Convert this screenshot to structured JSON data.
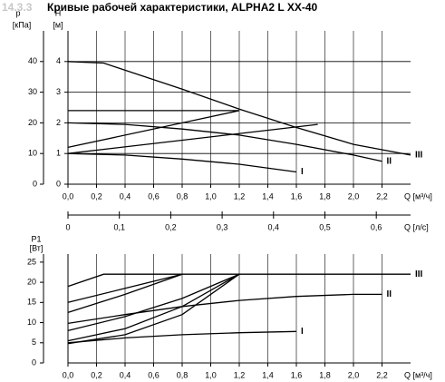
{
  "chart_data": [
    {
      "type": "line",
      "section": "14.3.3",
      "title": "Кривые рабочей характеристики, ALPHA2 L XX-40",
      "y_label": "H",
      "y_unit": "[м]",
      "y2_label": "p",
      "y2_unit": "[кПа]",
      "x_label": "Q [м³/ч]",
      "x2_label": "Q [л/с]",
      "xlim": [
        0,
        2.4
      ],
      "xticks": [
        {
          "value": 0,
          "label": "0,0"
        },
        {
          "value": 0.2,
          "label": "0,2"
        },
        {
          "value": 0.4,
          "label": "0,4"
        },
        {
          "value": 0.6,
          "label": "0,6"
        },
        {
          "value": 0.8,
          "label": "0,8"
        },
        {
          "value": 1.0,
          "label": "1,0"
        },
        {
          "value": 1.2,
          "label": "1,2"
        },
        {
          "value": 1.4,
          "label": "1,4"
        },
        {
          "value": 1.6,
          "label": "1,6"
        },
        {
          "value": 1.8,
          "label": "1,8"
        },
        {
          "value": 2.0,
          "label": "2,0"
        },
        {
          "value": 2.2,
          "label": "2,2"
        }
      ],
      "x2lim": [
        0,
        0.6667
      ],
      "x2ticks": [
        0,
        {
          "value": 0.1,
          "label": "0,1"
        },
        {
          "value": 0.2,
          "label": "0,2"
        },
        {
          "value": 0.3,
          "label": "0,3"
        },
        {
          "value": 0.4,
          "label": "0,4"
        },
        {
          "value": 0.5,
          "label": "0,5"
        },
        {
          "value": 0.6,
          "label": "0,6"
        }
      ],
      "ylim": [
        0,
        5
      ],
      "yticks": [
        0,
        1,
        2,
        3,
        4
      ],
      "y2lim": [
        0,
        50
      ],
      "y2ticks": [
        0,
        10,
        20,
        30,
        40
      ],
      "grid": [
        "x",
        "y"
      ],
      "series": [
        {
          "name": "I",
          "color": "#000000",
          "x": [
            0,
            0.4,
            0.8,
            1.2,
            1.6
          ],
          "values": [
            1.0,
            0.95,
            0.82,
            0.65,
            0.4
          ]
        },
        {
          "name": "II",
          "color": "#000000",
          "x": [
            0,
            0.4,
            0.8,
            1.2,
            1.6,
            2.0,
            2.2
          ],
          "values": [
            2.0,
            1.95,
            1.8,
            1.6,
            1.3,
            0.95,
            0.75
          ]
        },
        {
          "name": "III",
          "color": "#000000",
          "x": [
            0,
            0.25,
            0.8,
            1.2,
            1.6,
            2.0,
            2.4
          ],
          "values": [
            4.0,
            3.95,
            3.1,
            2.45,
            1.85,
            1.3,
            0.95
          ]
        },
        {
          "color": "#000000",
          "x": [
            0,
            1.2
          ],
          "values": [
            2.4,
            2.4
          ]
        },
        {
          "color": "#000000",
          "x": [
            0,
            1.2
          ],
          "values": [
            1.2,
            2.4
          ]
        },
        {
          "color": "#000000",
          "x": [
            0,
            1.75
          ],
          "values": [
            1.0,
            1.95
          ]
        }
      ]
    },
    {
      "type": "line",
      "y_label": "P1",
      "y_unit": "[Вт]",
      "x_label": "Q [м³/ч]",
      "xlim": [
        0,
        2.4
      ],
      "xticks": [
        {
          "value": 0,
          "label": "0,0"
        },
        {
          "value": 0.2,
          "label": "0,2"
        },
        {
          "value": 0.4,
          "label": "0,4"
        },
        {
          "value": 0.6,
          "label": "0,6"
        },
        {
          "value": 0.8,
          "label": "0,8"
        },
        {
          "value": 1.0,
          "label": "1,0"
        },
        {
          "value": 1.2,
          "label": "1,2"
        },
        {
          "value": 1.4,
          "label": "1,4"
        },
        {
          "value": 1.6,
          "label": "1,6"
        },
        {
          "value": 1.8,
          "label": "1,8"
        },
        {
          "value": 2.0,
          "label": "2,0"
        },
        {
          "value": 2.2,
          "label": "2,2"
        }
      ],
      "ylim": [
        0,
        27
      ],
      "yticks": [
        0,
        5,
        10,
        15,
        20,
        25
      ],
      "grid": [
        "x"
      ],
      "series": [
        {
          "name": "I",
          "color": "#000000",
          "x": [
            0,
            0.4,
            0.8,
            1.2,
            1.6
          ],
          "values": [
            5.0,
            6.2,
            7.0,
            7.5,
            7.8
          ]
        },
        {
          "name": "II",
          "color": "#000000",
          "x": [
            0,
            0.4,
            0.8,
            1.2,
            1.6,
            2.0,
            2.2
          ],
          "values": [
            9.8,
            12.0,
            14.0,
            15.5,
            16.5,
            17.0,
            17.0
          ]
        },
        {
          "name": "III",
          "color": "#000000",
          "x": [
            0,
            0.25,
            2.4
          ],
          "values": [
            19.0,
            22.0,
            22.0
          ]
        },
        {
          "color": "#000000",
          "x": [
            0,
            0.4,
            0.8
          ],
          "values": [
            15.0,
            18.5,
            22.0
          ]
        },
        {
          "color": "#000000",
          "x": [
            0,
            0.4,
            0.8
          ],
          "values": [
            12.5,
            17.0,
            22.0
          ]
        },
        {
          "color": "#000000",
          "x": [
            0,
            0.4,
            0.8,
            1.2
          ],
          "values": [
            8.0,
            11.5,
            16.0,
            22.0
          ]
        },
        {
          "color": "#000000",
          "x": [
            0,
            0.4,
            0.8,
            1.2
          ],
          "values": [
            5.5,
            8.5,
            14.0,
            22.0
          ]
        },
        {
          "color": "#000000",
          "x": [
            0,
            0.4,
            0.8,
            1.2
          ],
          "values": [
            4.8,
            7.0,
            12.0,
            22.0
          ]
        }
      ]
    }
  ]
}
